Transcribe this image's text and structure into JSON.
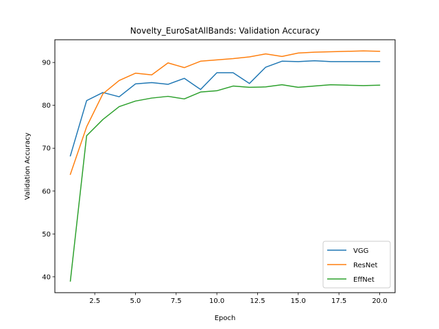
{
  "chart_data": {
    "type": "line",
    "title": "Novelty_EuroSatAllBands: Validation Accuracy",
    "xlabel": "Epoch",
    "ylabel": "Validation Accuracy",
    "xlim": [
      0.05,
      20.95
    ],
    "ylim": [
      36.3,
      95.3
    ],
    "xticks": [
      2.5,
      5.0,
      7.5,
      10.0,
      12.5,
      15.0,
      17.5,
      20.0
    ],
    "xtick_labels": [
      "2.5",
      "5.0",
      "7.5",
      "10.0",
      "12.5",
      "15.0",
      "17.5",
      "20.0"
    ],
    "yticks": [
      40,
      50,
      60,
      70,
      80,
      90
    ],
    "ytick_labels": [
      "40",
      "50",
      "60",
      "70",
      "80",
      "90"
    ],
    "grid": false,
    "legend_position": "lower-right",
    "x": [
      1,
      2,
      3,
      4,
      5,
      6,
      7,
      8,
      9,
      10,
      11,
      12,
      13,
      14,
      15,
      16,
      17,
      18,
      19,
      20
    ],
    "series": [
      {
        "name": "VGG",
        "color": "#1f77b4",
        "values": [
          68.2,
          81.1,
          83.0,
          82.0,
          85.0,
          85.3,
          84.9,
          86.3,
          83.7,
          87.6,
          87.6,
          85.1,
          88.9,
          90.3,
          90.2,
          90.4,
          90.2,
          90.2,
          90.2,
          90.2
        ]
      },
      {
        "name": "ResNet",
        "color": "#ff7f0e",
        "values": [
          63.9,
          75.0,
          82.7,
          85.8,
          87.5,
          87.1,
          89.9,
          88.8,
          90.3,
          90.6,
          90.9,
          91.3,
          92.0,
          91.4,
          92.2,
          92.4,
          92.5,
          92.6,
          92.7,
          92.6
        ]
      },
      {
        "name": "EffNet",
        "color": "#2ca02c",
        "values": [
          39.0,
          72.9,
          76.7,
          79.7,
          81.0,
          81.7,
          82.1,
          81.5,
          83.1,
          83.4,
          84.5,
          84.2,
          84.3,
          84.8,
          84.2,
          84.5,
          84.8,
          84.7,
          84.6,
          84.7
        ]
      }
    ]
  }
}
